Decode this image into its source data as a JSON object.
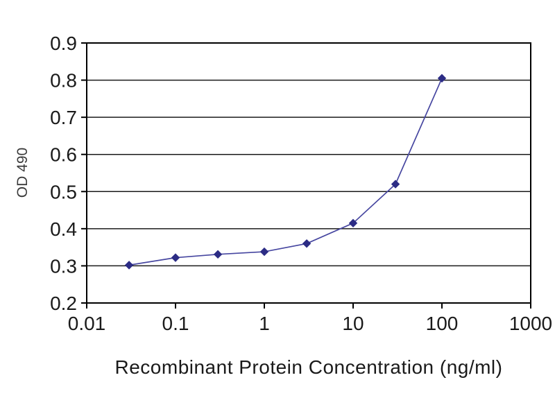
{
  "chart_data": {
    "type": "line",
    "title": "",
    "xlabel": "Recombinant Protein Concentration (ng/ml)",
    "ylabel": "OD 490",
    "x_scale": "log",
    "y_scale": "linear",
    "xlim": [
      0.01,
      1000
    ],
    "ylim": [
      0.2,
      0.9
    ],
    "x_ticks": [
      0.01,
      0.1,
      1,
      10,
      100,
      1000
    ],
    "x_tick_labels": [
      "0.01",
      "0.1",
      "1",
      "10",
      "100",
      "1000"
    ],
    "y_ticks": [
      0.2,
      0.3,
      0.4,
      0.5,
      0.6,
      0.7,
      0.8,
      0.9
    ],
    "y_tick_labels": [
      "0.2",
      "0.3",
      "0.4",
      "0.5",
      "0.6",
      "0.7",
      "0.8",
      "0.9"
    ],
    "grid": "horizontal",
    "legend": "none",
    "colors": {
      "line": "#4646a0",
      "marker": "#2c2c85",
      "grid": "#1a1a1a",
      "frame": "#000000",
      "text": "#1a1a1a"
    },
    "series": [
      {
        "name": "OD 490",
        "marker": "diamond",
        "points": [
          {
            "x": 0.03,
            "y": 0.302
          },
          {
            "x": 0.1,
            "y": 0.322
          },
          {
            "x": 0.3,
            "y": 0.331
          },
          {
            "x": 1,
            "y": 0.338
          },
          {
            "x": 3,
            "y": 0.36
          },
          {
            "x": 10,
            "y": 0.415
          },
          {
            "x": 30,
            "y": 0.52
          },
          {
            "x": 100,
            "y": 0.805
          }
        ]
      }
    ]
  }
}
